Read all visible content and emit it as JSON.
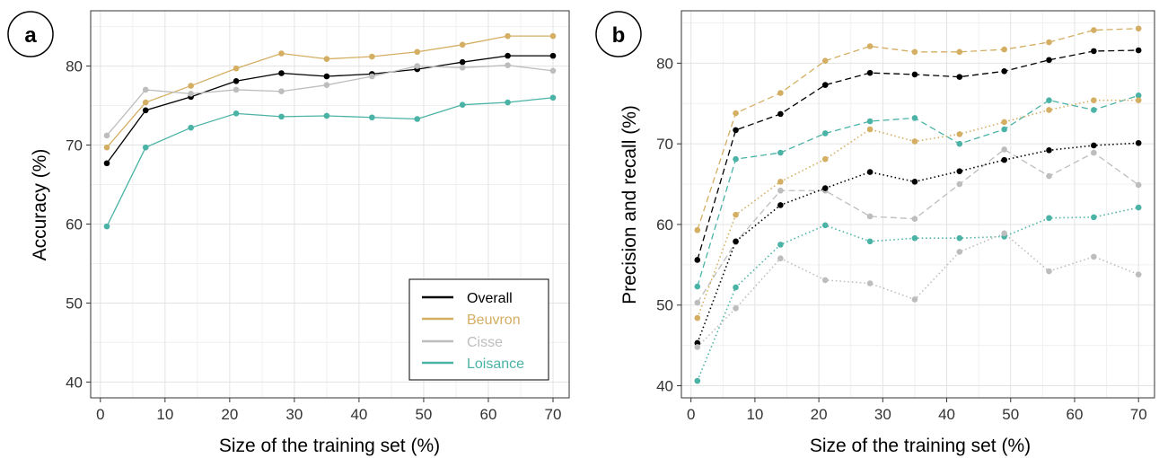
{
  "colors": {
    "Overall": "#000000",
    "Beuvron": "#D4AE62",
    "Cisse": "#BDBDBD",
    "Loisance": "#4BB3A6"
  },
  "chart_data": [
    {
      "panel": "a",
      "type": "line",
      "xlabel": "Size of the training set (%)",
      "ylabel": "Accuracy (%)",
      "xlim": [
        -1.5,
        72.5
      ],
      "ylim": [
        38,
        87
      ],
      "x_ticks": [
        "0",
        "10",
        "20",
        "30",
        "40",
        "50",
        "60",
        "70"
      ],
      "y_ticks": [
        "40",
        "50",
        "60",
        "70",
        "80"
      ],
      "grid": true,
      "legend_position": "bottom-right",
      "x": [
        1,
        7,
        14,
        21,
        28,
        35,
        42,
        49,
        56,
        63,
        70
      ],
      "series": [
        {
          "name": "Overall",
          "line": "solid",
          "values": [
            67.7,
            74.4,
            76.1,
            78.1,
            79.1,
            78.7,
            79.0,
            79.6,
            80.5,
            81.3,
            81.3
          ]
        },
        {
          "name": "Beuvron",
          "line": "solid",
          "values": [
            69.7,
            75.4,
            77.5,
            79.7,
            81.6,
            80.9,
            81.2,
            81.8,
            82.7,
            83.8,
            83.8
          ]
        },
        {
          "name": "Cisse",
          "line": "solid",
          "values": [
            71.2,
            77.0,
            76.5,
            77.0,
            76.8,
            77.6,
            78.7,
            80.0,
            79.8,
            80.1,
            79.4
          ]
        },
        {
          "name": "Loisance",
          "line": "solid",
          "values": [
            59.7,
            69.7,
            72.2,
            74.0,
            73.6,
            73.7,
            73.5,
            73.3,
            75.1,
            75.4,
            76.0
          ]
        }
      ]
    },
    {
      "panel": "b",
      "type": "line",
      "xlabel": "Size of the training set (%)",
      "ylabel": "Precision and recall (%)",
      "xlim": [
        -1.5,
        72.5
      ],
      "ylim": [
        38.5,
        86.5
      ],
      "x_ticks": [
        "0",
        "10",
        "20",
        "30",
        "40",
        "50",
        "60",
        "70"
      ],
      "y_ticks": [
        "40",
        "50",
        "60",
        "70",
        "80"
      ],
      "grid": true,
      "x": [
        1,
        7,
        14,
        21,
        28,
        35,
        42,
        49,
        56,
        63,
        70
      ],
      "series": [
        {
          "group": "Beuvron",
          "line": "dashed",
          "values": [
            59.3,
            73.8,
            76.3,
            80.3,
            82.1,
            81.4,
            81.4,
            81.7,
            82.6,
            84.1,
            84.3
          ]
        },
        {
          "group": "Overall",
          "line": "dashed",
          "values": [
            55.6,
            71.7,
            73.7,
            77.3,
            78.8,
            78.6,
            78.3,
            79.0,
            80.4,
            81.5,
            81.6
          ]
        },
        {
          "group": "Loisance",
          "line": "dashed",
          "values": [
            52.3,
            68.1,
            68.9,
            71.3,
            72.8,
            73.2,
            70.0,
            71.8,
            75.4,
            74.2,
            76.0
          ]
        },
        {
          "group": "Cisse",
          "line": "dashed",
          "values": [
            50.3,
            57.8,
            64.2,
            64.2,
            61.0,
            60.7,
            65.0,
            69.3,
            66.0,
            68.9,
            64.9
          ]
        },
        {
          "group": "Beuvron",
          "line": "dotted",
          "values": [
            48.4,
            61.2,
            65.3,
            68.1,
            71.8,
            70.3,
            71.2,
            72.7,
            74.2,
            75.4,
            75.4
          ]
        },
        {
          "group": "Overall",
          "line": "dotted",
          "values": [
            45.3,
            57.9,
            62.4,
            64.5,
            66.5,
            65.3,
            66.6,
            68.0,
            69.2,
            69.8,
            70.1
          ]
        },
        {
          "group": "Loisance",
          "line": "dotted",
          "values": [
            40.6,
            52.2,
            57.5,
            59.9,
            57.9,
            58.3,
            58.3,
            58.5,
            60.8,
            60.9,
            62.1
          ]
        },
        {
          "group": "Cisse",
          "line": "dotted",
          "values": [
            44.8,
            49.6,
            55.8,
            53.1,
            52.7,
            50.7,
            56.6,
            58.9,
            54.2,
            56.0,
            53.8
          ]
        }
      ]
    }
  ]
}
